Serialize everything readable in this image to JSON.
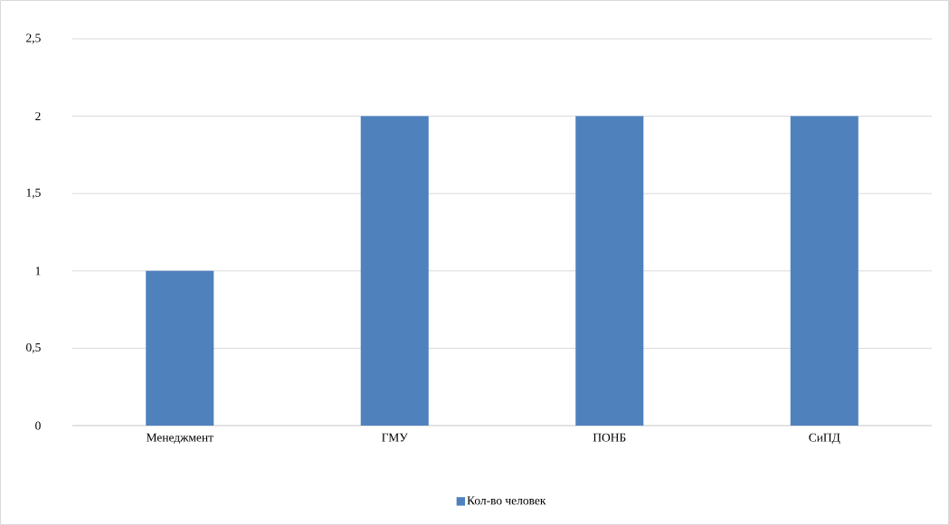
{
  "chart_data": {
    "type": "bar",
    "categories": [
      "Менеджмент",
      "ГМУ",
      "ПОНБ",
      "СиПД"
    ],
    "series": [
      {
        "name": "Кол-во человек",
        "color": "#4f81bd",
        "values": [
          1,
          2,
          2,
          2
        ]
      }
    ],
    "ylim": [
      0,
      2.5
    ],
    "yticks": [
      0,
      {
        "value": 0.5,
        "label": "0,5"
      },
      1,
      {
        "value": 1.5,
        "label": "1,5"
      },
      2,
      {
        "value": 2.5,
        "label": "2,5"
      }
    ],
    "grid": "y",
    "legend": "bottom"
  }
}
